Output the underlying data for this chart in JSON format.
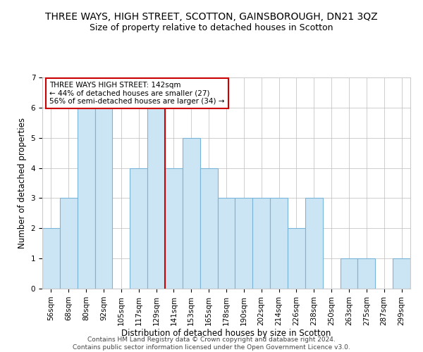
{
  "title": "THREE WAYS, HIGH STREET, SCOTTON, GAINSBOROUGH, DN21 3QZ",
  "subtitle": "Size of property relative to detached houses in Scotton",
  "xlabel": "Distribution of detached houses by size in Scotton",
  "ylabel": "Number of detached properties",
  "categories": [
    "56sqm",
    "68sqm",
    "80sqm",
    "92sqm",
    "105sqm",
    "117sqm",
    "129sqm",
    "141sqm",
    "153sqm",
    "165sqm",
    "178sqm",
    "190sqm",
    "202sqm",
    "214sqm",
    "226sqm",
    "238sqm",
    "250sqm",
    "263sqm",
    "275sqm",
    "287sqm",
    "299sqm"
  ],
  "values": [
    2,
    3,
    6,
    6,
    0,
    4,
    6,
    4,
    5,
    4,
    3,
    3,
    3,
    3,
    2,
    3,
    0,
    1,
    1,
    0,
    1
  ],
  "bar_color": "#cce5f5",
  "bar_edge_color": "#7ab4d8",
  "highlight_index": 7,
  "vline_color": "#cc0000",
  "annotation_line1": "THREE WAYS HIGH STREET: 142sqm",
  "annotation_line2": "← 44% of detached houses are smaller (27)",
  "annotation_line3": "56% of semi-detached houses are larger (34) →",
  "annotation_box_color": "#ffffff",
  "annotation_box_edge": "#cc0000",
  "ylim": [
    0,
    7
  ],
  "yticks": [
    0,
    1,
    2,
    3,
    4,
    5,
    6,
    7
  ],
  "footer1": "Contains HM Land Registry data © Crown copyright and database right 2024.",
  "footer2": "Contains public sector information licensed under the Open Government Licence v3.0.",
  "title_fontsize": 10,
  "subtitle_fontsize": 9,
  "xlabel_fontsize": 8.5,
  "ylabel_fontsize": 8.5,
  "tick_fontsize": 7.5,
  "annotation_fontsize": 7.5,
  "footer_fontsize": 6.5
}
